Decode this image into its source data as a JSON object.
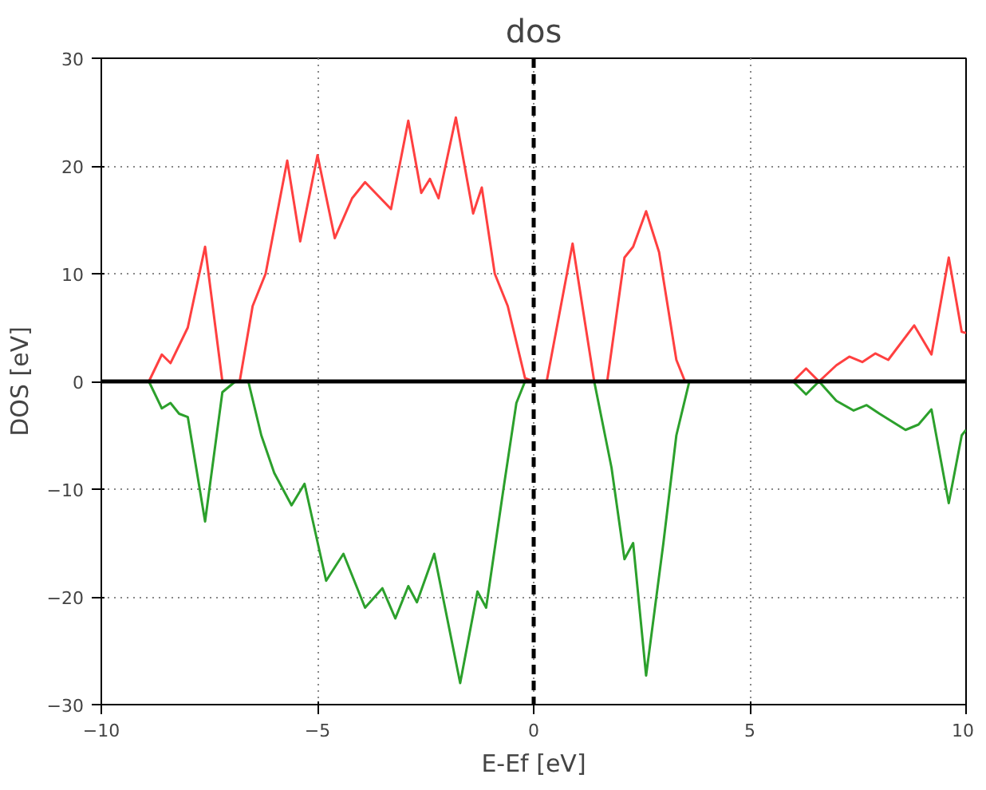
{
  "chart_data": {
    "type": "line",
    "title": "dos",
    "xlabel": "E-Ef [eV]",
    "ylabel": "DOS [eV]",
    "xlim": [
      -10,
      10
    ],
    "ylim": [
      -30,
      30
    ],
    "xticks": [
      -10,
      -5,
      0,
      5,
      10
    ],
    "yticks": [
      -30,
      -20,
      -10,
      0,
      10,
      20,
      30
    ],
    "grid": true,
    "ref_lines": [
      {
        "axis": "y",
        "value": 0,
        "color": "#000000",
        "line_style": "solid"
      },
      {
        "axis": "x",
        "value": 0,
        "color": "#000000",
        "line_style": "dashed"
      }
    ],
    "series": [
      {
        "color": "#ff4040",
        "x": [
          -8.9,
          -8.6,
          -8.4,
          -8.0,
          -7.6,
          -7.2,
          -6.8,
          -6.5,
          -6.2,
          -5.7,
          -5.4,
          -5.0,
          -4.6,
          -4.2,
          -3.9,
          -3.3,
          -2.9,
          -2.6,
          -2.4,
          -2.2,
          -1.8,
          -1.4,
          -1.2,
          -0.9,
          -0.6,
          -0.2,
          0.0,
          0.3,
          0.9,
          1.4,
          1.7,
          2.1,
          2.3,
          2.6,
          2.9,
          3.3,
          3.5,
          4.0,
          6.0,
          6.3,
          6.6,
          7.0,
          7.3,
          7.6,
          7.9,
          8.2,
          8.8,
          9.2,
          9.6,
          9.9,
          10.0
        ],
        "values": [
          0,
          2.5,
          1.7,
          5,
          12.5,
          0,
          0,
          7,
          10,
          20.5,
          13,
          21,
          13.3,
          17,
          18.5,
          16,
          24.2,
          17.5,
          18.8,
          17,
          24.5,
          15.6,
          18,
          10,
          7,
          0.3,
          0,
          0,
          12.8,
          0,
          0,
          11.5,
          12.5,
          15.8,
          12,
          2,
          0,
          null,
          0,
          1.2,
          0,
          1.5,
          2.3,
          1.8,
          2.6,
          2,
          5.2,
          2.5,
          11.5,
          4.6,
          4.5
        ]
      },
      {
        "color": "#2ca02c",
        "x": [
          -8.9,
          -8.6,
          -8.4,
          -8.2,
          -8.0,
          -7.6,
          -7.2,
          -6.9,
          -6.6,
          -6.3,
          -6.0,
          -5.6,
          -5.3,
          -4.8,
          -4.4,
          -3.9,
          -3.5,
          -3.2,
          -2.9,
          -2.7,
          -2.3,
          -1.7,
          -1.3,
          -1.1,
          -0.7,
          -0.4,
          -0.2,
          0.5,
          1.4,
          1.8,
          2.1,
          2.3,
          2.6,
          3.0,
          3.3,
          3.6,
          4.5,
          6.0,
          6.3,
          6.6,
          7.0,
          7.4,
          7.7,
          8.0,
          8.6,
          8.9,
          9.2,
          9.6,
          9.9,
          10.0
        ],
        "values": [
          0,
          -2.5,
          -2,
          -3,
          -3.3,
          -13,
          -1,
          0,
          0,
          -5,
          -8.5,
          -11.5,
          -9.5,
          -18.5,
          -16,
          -21,
          -19.2,
          -22,
          -19,
          -20.5,
          -16,
          -28,
          -19.5,
          -21,
          -10,
          -2,
          0,
          null,
          0,
          -8,
          -16.5,
          -15,
          -27.3,
          -15,
          -5,
          0,
          null,
          0,
          -1.2,
          0,
          -1.8,
          -2.7,
          -2.2,
          -3,
          -4.5,
          -4,
          -2.6,
          -11.3,
          -5,
          -4.5
        ]
      }
    ]
  }
}
